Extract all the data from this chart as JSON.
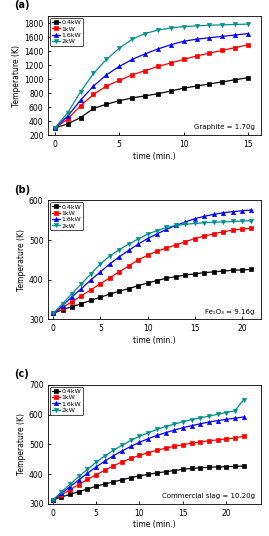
{
  "panels": [
    {
      "label": "(a)",
      "annotation": "Graphite = 1.70g",
      "xlim": [
        -0.5,
        16
      ],
      "ylim": [
        200,
        1900
      ],
      "yticks": [
        200,
        400,
        600,
        800,
        1000,
        1200,
        1400,
        1600,
        1800
      ],
      "xticks": [
        0,
        5,
        10,
        15
      ],
      "xlabel": "time (min.)",
      "ylabel": "Temperature (K)",
      "series": [
        {
          "label": "0.4kW",
          "color": "black",
          "marker": "s",
          "x": [
            0,
            1,
            2,
            3,
            4,
            5,
            6,
            7,
            8,
            9,
            10,
            11,
            12,
            13,
            14,
            15
          ],
          "y": [
            300,
            360,
            450,
            580,
            640,
            690,
            730,
            760,
            790,
            830,
            870,
            900,
            930,
            960,
            990,
            1020
          ]
        },
        {
          "label": "1kW",
          "color": "red",
          "marker": "s",
          "x": [
            0,
            1,
            2,
            3,
            4,
            5,
            6,
            7,
            8,
            9,
            10,
            11,
            12,
            13,
            14,
            15
          ],
          "y": [
            300,
            430,
            620,
            780,
            900,
            980,
            1060,
            1120,
            1180,
            1230,
            1280,
            1330,
            1370,
            1410,
            1450,
            1490
          ]
        },
        {
          "label": "1.6kW",
          "color": "blue",
          "marker": "^",
          "x": [
            0,
            1,
            2,
            3,
            4,
            5,
            6,
            7,
            8,
            9,
            10,
            11,
            12,
            13,
            14,
            15
          ],
          "y": [
            300,
            470,
            700,
            900,
            1060,
            1180,
            1280,
            1360,
            1430,
            1490,
            1540,
            1570,
            1590,
            1610,
            1630,
            1650
          ]
        },
        {
          "label": "2kW",
          "color": "#009090",
          "marker": "v",
          "x": [
            0,
            1,
            2,
            3,
            4,
            5,
            6,
            7,
            8,
            9,
            10,
            11,
            12,
            13,
            14,
            15
          ],
          "y": [
            300,
            520,
            820,
            1080,
            1280,
            1440,
            1570,
            1650,
            1700,
            1730,
            1750,
            1760,
            1770,
            1775,
            1780,
            1785
          ]
        }
      ]
    },
    {
      "label": "(b)",
      "annotation": "Fe₂O₃ = 9.16g",
      "xlim": [
        -0.5,
        22
      ],
      "ylim": [
        300,
        600
      ],
      "yticks": [
        300,
        400,
        500,
        600
      ],
      "xticks": [
        0,
        5,
        10,
        15,
        20
      ],
      "xlabel": "time (min.)",
      "ylabel": "Temperature (K)",
      "series": [
        {
          "label": "0.4kW",
          "color": "black",
          "marker": "s",
          "x": [
            0,
            1,
            2,
            3,
            4,
            5,
            6,
            7,
            8,
            9,
            10,
            11,
            12,
            13,
            14,
            15,
            16,
            17,
            18,
            19,
            20,
            21
          ],
          "y": [
            315,
            325,
            332,
            340,
            348,
            356,
            364,
            371,
            378,
            385,
            392,
            398,
            404,
            408,
            412,
            415,
            418,
            420,
            422,
            424,
            425,
            426
          ]
        },
        {
          "label": "1kW",
          "color": "red",
          "marker": "s",
          "x": [
            0,
            1,
            2,
            3,
            4,
            5,
            6,
            7,
            8,
            9,
            10,
            11,
            12,
            13,
            14,
            15,
            16,
            17,
            18,
            19,
            20,
            21
          ],
          "y": [
            315,
            330,
            345,
            360,
            375,
            390,
            405,
            420,
            435,
            450,
            462,
            472,
            480,
            488,
            496,
            504,
            510,
            516,
            521,
            525,
            528,
            530
          ]
        },
        {
          "label": "1.6kW",
          "color": "blue",
          "marker": "^",
          "x": [
            0,
            1,
            2,
            3,
            4,
            5,
            6,
            7,
            8,
            9,
            10,
            11,
            12,
            13,
            14,
            15,
            16,
            17,
            18,
            19,
            20,
            21
          ],
          "y": [
            315,
            335,
            357,
            378,
            400,
            420,
            440,
            458,
            474,
            490,
            504,
            516,
            527,
            537,
            546,
            554,
            560,
            565,
            569,
            572,
            574,
            576
          ]
        },
        {
          "label": "2kW",
          "color": "#009090",
          "marker": "v",
          "x": [
            0,
            1,
            2,
            3,
            4,
            5,
            6,
            7,
            8,
            9,
            10,
            11,
            12,
            13,
            14,
            15,
            16,
            17,
            18,
            19,
            20,
            21
          ],
          "y": [
            315,
            340,
            365,
            390,
            415,
            440,
            460,
            476,
            490,
            503,
            515,
            524,
            532,
            537,
            540,
            542,
            544,
            545,
            546,
            547,
            548,
            549
          ]
        }
      ]
    },
    {
      "label": "(c)",
      "annotation": "Commercial slag = 10.20g",
      "xlim": [
        -0.5,
        24
      ],
      "ylim": [
        300,
        700
      ],
      "yticks": [
        300,
        400,
        500,
        600,
        700
      ],
      "xticks": [
        0,
        5,
        10,
        15,
        20
      ],
      "xlabel": "time (min.)",
      "ylabel": "Temperature (K)",
      "series": [
        {
          "label": "0.4kW",
          "color": "black",
          "marker": "s",
          "x": [
            0,
            1,
            2,
            3,
            4,
            5,
            6,
            7,
            8,
            9,
            10,
            11,
            12,
            13,
            14,
            15,
            16,
            17,
            18,
            19,
            20,
            21,
            22
          ],
          "y": [
            313,
            323,
            332,
            341,
            350,
            359,
            367,
            374,
            381,
            388,
            394,
            399,
            404,
            408,
            412,
            416,
            419,
            421,
            423,
            424,
            425,
            426,
            427
          ]
        },
        {
          "label": "1kW",
          "color": "red",
          "marker": "s",
          "x": [
            0,
            1,
            2,
            3,
            4,
            5,
            6,
            7,
            8,
            9,
            10,
            11,
            12,
            13,
            14,
            15,
            16,
            17,
            18,
            19,
            20,
            21,
            22
          ],
          "y": [
            313,
            330,
            348,
            365,
            382,
            398,
            413,
            428,
            441,
            453,
            463,
            472,
            480,
            487,
            493,
            499,
            504,
            508,
            512,
            515,
            518,
            522,
            527
          ]
        },
        {
          "label": "1.6kW",
          "color": "blue",
          "marker": "^",
          "x": [
            0,
            1,
            2,
            3,
            4,
            5,
            6,
            7,
            8,
            9,
            10,
            11,
            12,
            13,
            14,
            15,
            16,
            17,
            18,
            19,
            20,
            21,
            22
          ],
          "y": [
            313,
            335,
            358,
            380,
            403,
            424,
            444,
            462,
            478,
            493,
            507,
            519,
            530,
            539,
            548,
            556,
            563,
            569,
            575,
            580,
            584,
            588,
            592
          ]
        },
        {
          "label": "2kW",
          "color": "#009090",
          "marker": "v",
          "x": [
            0,
            1,
            2,
            3,
            4,
            5,
            6,
            7,
            8,
            9,
            10,
            11,
            12,
            13,
            14,
            15,
            16,
            17,
            18,
            19,
            20,
            21,
            22
          ],
          "y": [
            313,
            340,
            366,
            392,
            416,
            440,
            461,
            480,
            497,
            513,
            527,
            539,
            550,
            560,
            568,
            576,
            583,
            589,
            595,
            601,
            607,
            613,
            650
          ]
        }
      ]
    }
  ],
  "figsize": [
    2.69,
    5.36
  ],
  "dpi": 100
}
